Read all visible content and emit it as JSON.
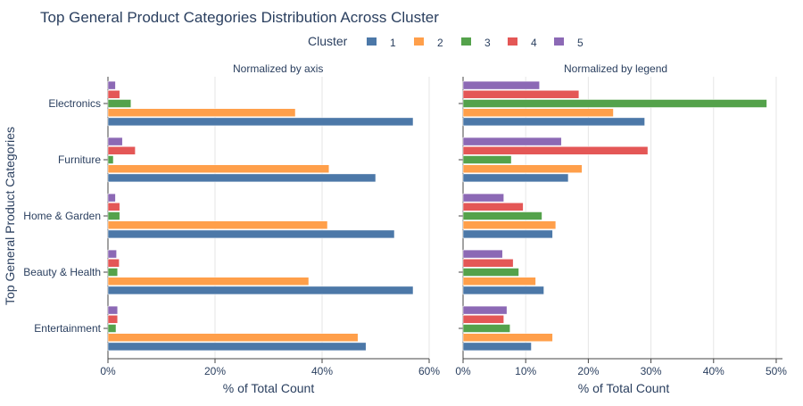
{
  "chart_data": {
    "type": "bar",
    "orientation": "horizontal",
    "title": "Top General Product Categories Distribution Across Cluster",
    "ylabel": "Top General Product Categories",
    "legend": {
      "title": "Cluster",
      "position": "top-center",
      "entries": [
        {
          "name": "1",
          "color": "#4c78a8"
        },
        {
          "name": "2",
          "color": "#ff9f4a"
        },
        {
          "name": "3",
          "color": "#54a24b"
        },
        {
          "name": "4",
          "color": "#e45756"
        },
        {
          "name": "5",
          "color": "#8c69b5"
        }
      ]
    },
    "categories": [
      "Electronics",
      "Furniture",
      "Home & Garden",
      "Beauty & Health",
      "Entertainment"
    ],
    "panels": [
      {
        "subtitle": "Normalized by axis",
        "xlabel": "% of Total Count",
        "xlim": [
          0,
          60
        ],
        "xticks": [
          0,
          20,
          40,
          60
        ],
        "xtick_labels": [
          "0%",
          "20%",
          "40%",
          "60%"
        ],
        "series": [
          {
            "name": "1",
            "values": [
              57,
              50,
              53.5,
              57,
              48.2
            ]
          },
          {
            "name": "2",
            "values": [
              35,
              41.3,
              41,
              37.5,
              46.7
            ]
          },
          {
            "name": "3",
            "values": [
              4.3,
              1,
              2.2,
              1.8,
              1.5
            ]
          },
          {
            "name": "4",
            "values": [
              2.2,
              5.1,
              2.2,
              2.1,
              1.8
            ]
          },
          {
            "name": "5",
            "values": [
              1.4,
              2.7,
              1.4,
              1.6,
              1.8
            ]
          }
        ]
      },
      {
        "subtitle": "Normalized by legend",
        "xlabel": "% of Total Count",
        "xlim": [
          0,
          51
        ],
        "xticks": [
          0,
          10,
          20,
          30,
          40,
          50
        ],
        "xtick_labels": [
          "0%",
          "10%",
          "20%",
          "30%",
          "40%",
          "50%"
        ],
        "series": [
          {
            "name": "1",
            "values": [
              29,
              16.8,
              14.3,
              12.9,
              10.9
            ]
          },
          {
            "name": "2",
            "values": [
              24,
              19,
              14.8,
              11.6,
              14.3
            ]
          },
          {
            "name": "3",
            "values": [
              48.5,
              7.7,
              12.6,
              8.9,
              7.5
            ]
          },
          {
            "name": "4",
            "values": [
              18.5,
              29.5,
              9.6,
              8,
              6.5
            ]
          },
          {
            "name": "5",
            "values": [
              12.2,
              15.7,
              6.5,
              6.3,
              7
            ]
          }
        ]
      }
    ]
  }
}
